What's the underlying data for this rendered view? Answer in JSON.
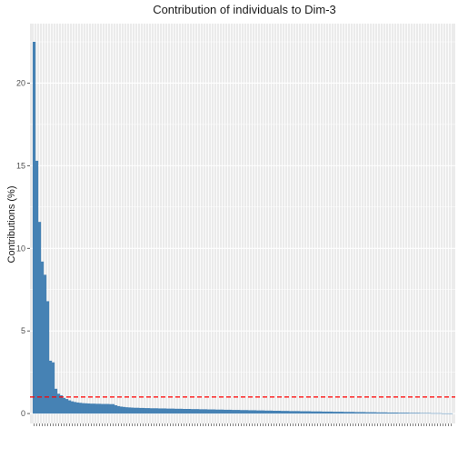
{
  "chart_data": {
    "type": "bar",
    "title": "Contribution of individuals to Dim-3",
    "xlabel": "",
    "ylabel": "Contributions (%)",
    "ylim": [
      -0.6,
      23.6
    ],
    "yticks": [
      0,
      5,
      10,
      15,
      20
    ],
    "reference_line": {
      "value": 1.0,
      "style": "dashed",
      "color": "#ff0000"
    },
    "bar_color": "#4682b4",
    "panel_background": "#ebebeb",
    "grid": true,
    "values": [
      22.5,
      15.3,
      11.6,
      9.2,
      8.4,
      6.8,
      3.2,
      3.1,
      1.5,
      1.2,
      1.1,
      0.95,
      0.88,
      0.8,
      0.74,
      0.7,
      0.67,
      0.65,
      0.63,
      0.62,
      0.61,
      0.6,
      0.6,
      0.59,
      0.59,
      0.58,
      0.58,
      0.58,
      0.57,
      0.57,
      0.5,
      0.45,
      0.42,
      0.4,
      0.38,
      0.37,
      0.36,
      0.35,
      0.35,
      0.34,
      0.34,
      0.33,
      0.33,
      0.32,
      0.32,
      0.32,
      0.31,
      0.31,
      0.31,
      0.3,
      0.3,
      0.3,
      0.29,
      0.29,
      0.29,
      0.28,
      0.28,
      0.28,
      0.27,
      0.27,
      0.27,
      0.26,
      0.26,
      0.26,
      0.25,
      0.25,
      0.25,
      0.24,
      0.24,
      0.24,
      0.23,
      0.23,
      0.23,
      0.22,
      0.22,
      0.22,
      0.21,
      0.21,
      0.21,
      0.2,
      0.2,
      0.2,
      0.19,
      0.19,
      0.19,
      0.18,
      0.18,
      0.18,
      0.17,
      0.17,
      0.17,
      0.16,
      0.16,
      0.16,
      0.15,
      0.15,
      0.15,
      0.15,
      0.14,
      0.14,
      0.14,
      0.14,
      0.13,
      0.13,
      0.13,
      0.13,
      0.12,
      0.12,
      0.12,
      0.12,
      0.11,
      0.11,
      0.11,
      0.11,
      0.1,
      0.1,
      0.1,
      0.1,
      0.09,
      0.09,
      0.09,
      0.09,
      0.08,
      0.08,
      0.08,
      0.08,
      0.07,
      0.07,
      0.07,
      0.07,
      0.06,
      0.06,
      0.06,
      0.06,
      0.05,
      0.05,
      0.05,
      0.05,
      0.04,
      0.04,
      0.04,
      0.04,
      0.03,
      0.03,
      0.03,
      0.03,
      0.02,
      0.02,
      0.02,
      0.02,
      0.01,
      0.01,
      0.01,
      0.01
    ]
  }
}
